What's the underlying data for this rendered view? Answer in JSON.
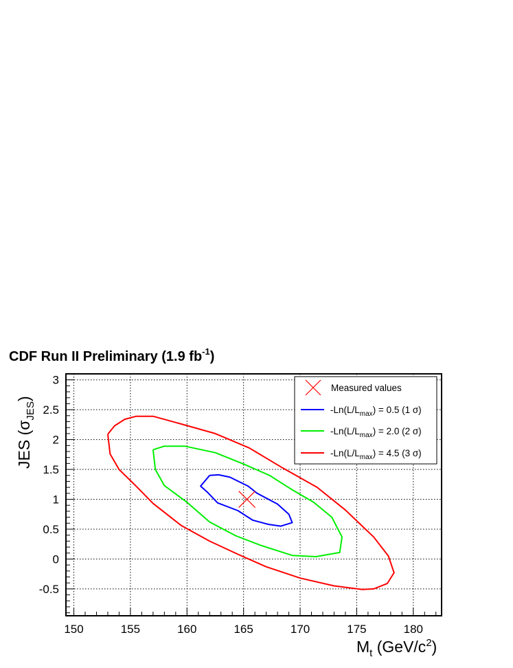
{
  "chart_data": {
    "type": "line",
    "title": "CDF Run II Preliminary (1.9 fb",
    "title_sup": "-1",
    "title_end": ")",
    "xlabel": {
      "base": "M",
      "sub": "t",
      "mid": " (GeV/c",
      "sup": "2",
      "end": ")"
    },
    "ylabel": {
      "base": "JES (σ",
      "sub": "JES",
      "end": ")"
    },
    "xlim": [
      149.3,
      182.5
    ],
    "ylim": [
      -0.95,
      3.1
    ],
    "x_ticks": [
      150,
      155,
      160,
      165,
      170,
      175,
      180
    ],
    "x_tick_labels": [
      "150",
      "155",
      "160",
      "165",
      "170",
      "175",
      "180"
    ],
    "y_ticks": [
      -0.5,
      0,
      0.5,
      1,
      1.5,
      2,
      2.5,
      3
    ],
    "y_tick_labels": [
      "-0.5",
      "0",
      "0.5",
      "1",
      "1.5",
      "2",
      "2.5",
      "3"
    ],
    "grid": true,
    "grid_style": "dotted",
    "legend_position": "top-right",
    "measured_point": {
      "name": "Measured values",
      "x": 165.3,
      "y": 1.0,
      "color": "#ff0000",
      "marker": "x"
    },
    "series": [
      {
        "name": "-Ln(L/L",
        "name_sub": "max",
        "name_end": ") = 0.5 (1 σ)",
        "color": "#0000ff",
        "x": [
          162.0,
          161.2,
          161.8,
          162.7,
          164.5,
          165.8,
          167.2,
          168.3,
          169.3,
          169.0,
          168.0,
          166.2,
          165.4,
          163.8,
          162.8,
          162.0
        ],
        "y": [
          1.4,
          1.22,
          1.12,
          0.94,
          0.81,
          0.65,
          0.58,
          0.55,
          0.61,
          0.75,
          0.92,
          1.1,
          1.22,
          1.37,
          1.41,
          1.4
        ]
      },
      {
        "name": "-Ln(L/L",
        "name_sub": "max",
        "name_end": ") = 2.0 (2 σ)",
        "color": "#00ee00",
        "x": [
          157.0,
          158.0,
          159.8,
          162.5,
          165.0,
          167.3,
          169.2,
          171.2,
          172.8,
          173.7,
          173.5,
          171.4,
          169.3,
          166.5,
          164.3,
          162.0,
          160.0,
          158.0,
          157.2,
          157.0
        ],
        "y": [
          1.83,
          1.89,
          1.89,
          1.78,
          1.59,
          1.4,
          1.17,
          0.95,
          0.7,
          0.37,
          0.11,
          0.04,
          0.06,
          0.23,
          0.39,
          0.62,
          0.95,
          1.23,
          1.5,
          1.83
        ],
        "name_alt": ""
      },
      {
        "name": "-Ln(L/L",
        "name_sub": "max",
        "name_end": ") = 4.5 (3 σ)",
        "color": "#ff0000",
        "x": [
          153.0,
          153.6,
          154.5,
          155.5,
          157.0,
          159.5,
          162.5,
          165.5,
          168.5,
          171.5,
          174.0,
          176.5,
          177.8,
          178.3,
          177.7,
          176.5,
          175.5,
          173.0,
          170.0,
          167.0,
          164.5,
          162.0,
          159.5,
          157.0,
          155.5,
          154.0,
          153.2,
          153.0
        ],
        "y": [
          2.09,
          2.23,
          2.34,
          2.39,
          2.39,
          2.26,
          2.1,
          1.86,
          1.52,
          1.2,
          0.82,
          0.37,
          0.05,
          -0.23,
          -0.41,
          -0.5,
          -0.51,
          -0.45,
          -0.32,
          -0.13,
          0.08,
          0.3,
          0.56,
          0.93,
          1.22,
          1.5,
          1.76,
          2.09
        ]
      }
    ]
  }
}
